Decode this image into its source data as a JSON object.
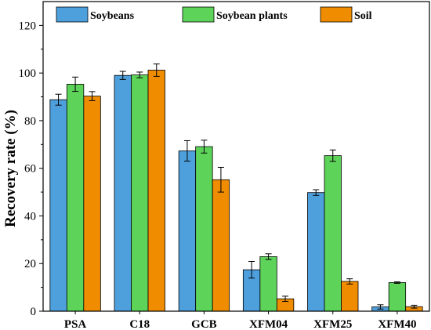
{
  "chart_data": {
    "type": "bar",
    "title": "",
    "xlabel": "",
    "ylabel": "Recovery rate (%)",
    "ylim": [
      0,
      130
    ],
    "yticks": [
      0,
      20,
      40,
      60,
      80,
      100,
      120
    ],
    "grid": false,
    "legend_position": "top",
    "categories": [
      "PSA",
      "C18",
      "GCB",
      "XFM04",
      "XFM25",
      "XFM40"
    ],
    "series": [
      {
        "name": "Soybeans",
        "color": "#4ea0dc",
        "values": [
          88.8,
          99.0,
          67.3,
          17.4,
          49.8,
          1.8
        ],
        "errors": [
          2.3,
          1.7,
          4.3,
          3.5,
          1.2,
          0.9
        ]
      },
      {
        "name": "Soybean plants",
        "color": "#5dd35a",
        "values": [
          95.3,
          99.2,
          69.1,
          22.9,
          65.3,
          12.0
        ],
        "errors": [
          3.0,
          1.2,
          2.7,
          1.2,
          2.4,
          0.3
        ]
      },
      {
        "name": "Soil",
        "color": "#f08c00",
        "values": [
          90.3,
          101.2,
          55.2,
          5.2,
          12.5,
          1.9
        ],
        "errors": [
          1.9,
          2.6,
          5.2,
          1.1,
          1.1,
          0.6
        ]
      }
    ]
  }
}
